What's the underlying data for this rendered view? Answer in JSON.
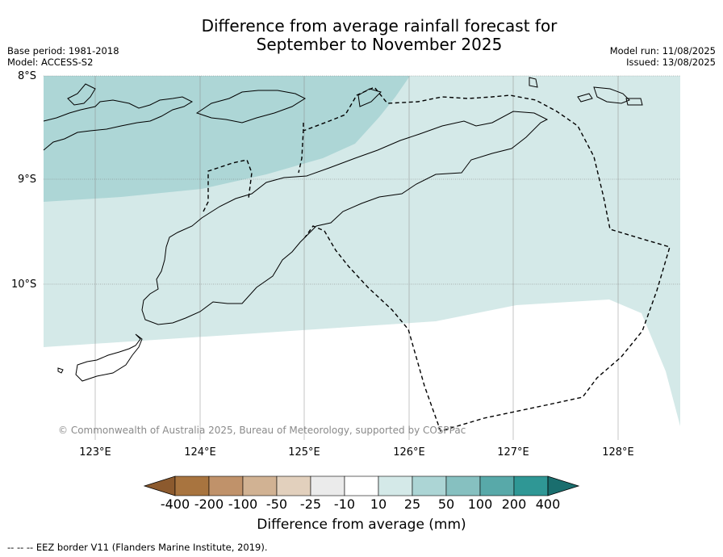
{
  "title_line1": "Difference from average rainfall forecast for",
  "title_line2": "September to November 2025",
  "base_period": "Base period: 1981-2018",
  "model": "Model: ACCESS-S2",
  "model_run": "Model run: 11/08/2025",
  "issued": "Issued: 13/08/2025",
  "lat_labels": [
    "8°S",
    "9°S",
    "10°S"
  ],
  "lon_labels": [
    "123°E",
    "124°E",
    "125°E",
    "126°E",
    "127°E",
    "128°E"
  ],
  "copyright": "© Commonwealth of Australia 2025, Bureau of Meteorology, supported by COSPPac",
  "colorbar": {
    "title": "Difference from average (mm)",
    "ticks": [
      "-400",
      "-200",
      "-100",
      "-50",
      "-25",
      "-10",
      "10",
      "25",
      "50",
      "100",
      "200",
      "400"
    ],
    "colors": [
      "#8c5a2e",
      "#a8743f",
      "#c0926a",
      "#d1b293",
      "#e2d0bd",
      "#ebebeb",
      "#ffffff",
      "#d4e9e8",
      "#acd5d5",
      "#86c0c0",
      "#58a9a9",
      "#2f9795",
      "#1a6e6e"
    ]
  },
  "footer_note": "-- -- -- EEZ border V11 (Flanders Marine Institute, 2019).",
  "map_colors": {
    "zone_10_25": "#d4e9e8",
    "zone_25_50": "#add6d6"
  }
}
